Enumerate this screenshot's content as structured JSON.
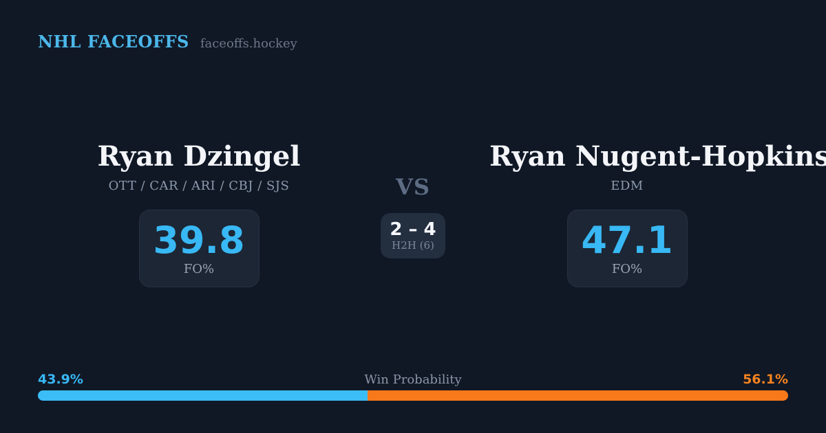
{
  "header": {
    "brand": "NHL FACEOFFS",
    "site": "faceoffs.hockey"
  },
  "players": {
    "left": {
      "name": "Ryan Dzingel",
      "teams": "OTT / CAR / ARI / CBJ / SJS",
      "fo_value": "39.8",
      "fo_label": "FO%"
    },
    "right": {
      "name": "Ryan Nugent-Hopkins",
      "teams": "EDM",
      "fo_value": "47.1",
      "fo_label": "FO%"
    }
  },
  "matchup": {
    "vs_label": "VS",
    "h2h_score": "2 – 4",
    "h2h_label": "H2H (6)"
  },
  "win_probability": {
    "title": "Win Probability",
    "left_pct": "43.9%",
    "right_pct": "56.1%",
    "left_value": 43.9,
    "right_value": 56.1
  },
  "colors": {
    "background": "#101826",
    "card_background": "#1d2634",
    "h2h_card_background": "#232e3f",
    "accent_blue": "#38b8f4",
    "accent_orange": "#f5821f",
    "bar_blue": "#3bbdf7",
    "bar_orange": "#f8791a",
    "brand_blue": "#4cb7ea"
  }
}
